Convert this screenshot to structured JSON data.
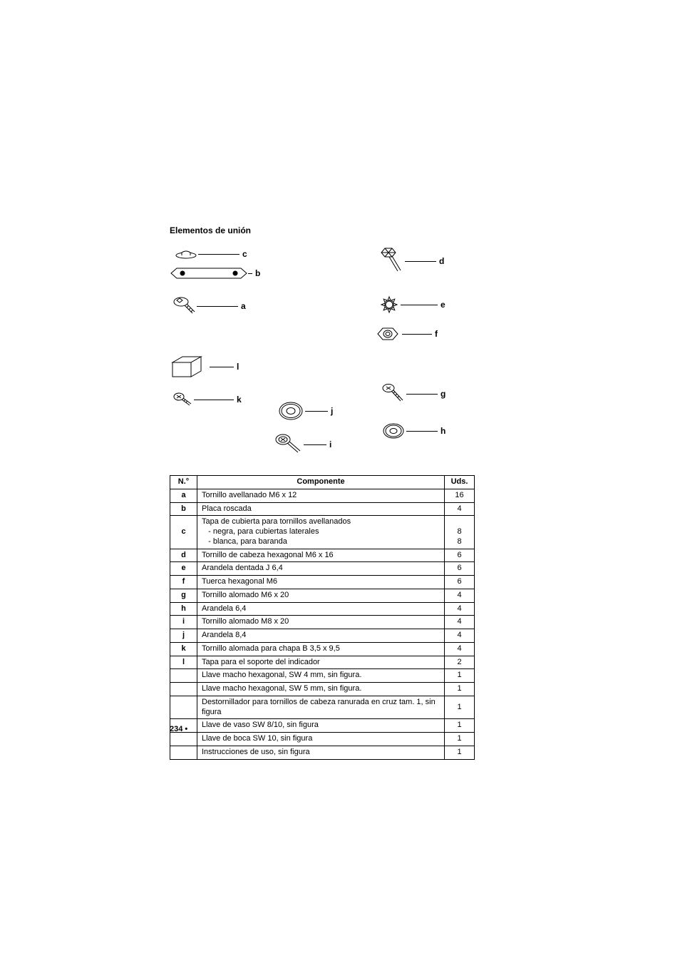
{
  "section_title": "Elementos de unión",
  "labels": {
    "a": "a",
    "b": "b",
    "c": "c",
    "d": "d",
    "e": "e",
    "f": "f",
    "g": "g",
    "h": "h",
    "i": "i",
    "j": "j",
    "k": "k",
    "l": "l"
  },
  "table": {
    "headers": {
      "no": "N.°",
      "component": "Componente",
      "qty": "Uds."
    },
    "rows": [
      {
        "no": "a",
        "comp": "Tornillo avellanado M6 x 12",
        "qty": "16"
      },
      {
        "no": "b",
        "comp": "Placa roscada",
        "qty": "4"
      },
      {
        "no": "c",
        "comp": "Tapa de cubierta para tornillos avellanados",
        "qty": ""
      },
      {
        "no": "",
        "comp": "   - negra, para cubiertas laterales",
        "qty": "8",
        "merge_prev": true
      },
      {
        "no": "",
        "comp": "   - blanca, para baranda",
        "qty": "8",
        "merge_prev": true
      },
      {
        "no": "d",
        "comp": "Tornillo de cabeza hexagonal M6 x 16",
        "qty": "6"
      },
      {
        "no": "e",
        "comp": "Arandela dentada J 6,4",
        "qty": "6"
      },
      {
        "no": "f",
        "comp": "Tuerca hexagonal M6",
        "qty": "6"
      },
      {
        "no": "g",
        "comp": "Tornillo alomado M6 x 20",
        "qty": "4"
      },
      {
        "no": "h",
        "comp": "Arandela 6,4",
        "qty": "4"
      },
      {
        "no": "i",
        "comp": "Tornillo alomado M8 x 20",
        "qty": "4"
      },
      {
        "no": "j",
        "comp": "Arandela 8,4",
        "qty": "4"
      },
      {
        "no": "k",
        "comp": "Tornillo alomada para chapa B 3,5 x 9,5",
        "qty": "4"
      },
      {
        "no": "l",
        "comp": "Tapa para el soporte del indicador",
        "qty": "2"
      },
      {
        "no": "",
        "comp": "Llave macho hexagonal, SW 4 mm, sin figura.",
        "qty": "1"
      },
      {
        "no": "",
        "comp": "Llave macho hexagonal, SW 5 mm, sin figura.",
        "qty": "1"
      },
      {
        "no": "",
        "comp": "Destornillador para tornillos de cabeza ranurada en cruz tam. 1, sin figura",
        "qty": "1"
      },
      {
        "no": "",
        "comp": "Llave de vaso SW 8/10, sin figura",
        "qty": "1"
      },
      {
        "no": "",
        "comp": "Llave de boca SW 10, sin figura",
        "qty": "1"
      },
      {
        "no": "",
        "comp": "Instrucciones de uso, sin figura",
        "qty": "1"
      }
    ]
  },
  "page_number": "234 •",
  "style": {
    "stroke": "#000000",
    "bg": "#ffffff",
    "font_main": 11,
    "font_label": 12
  }
}
